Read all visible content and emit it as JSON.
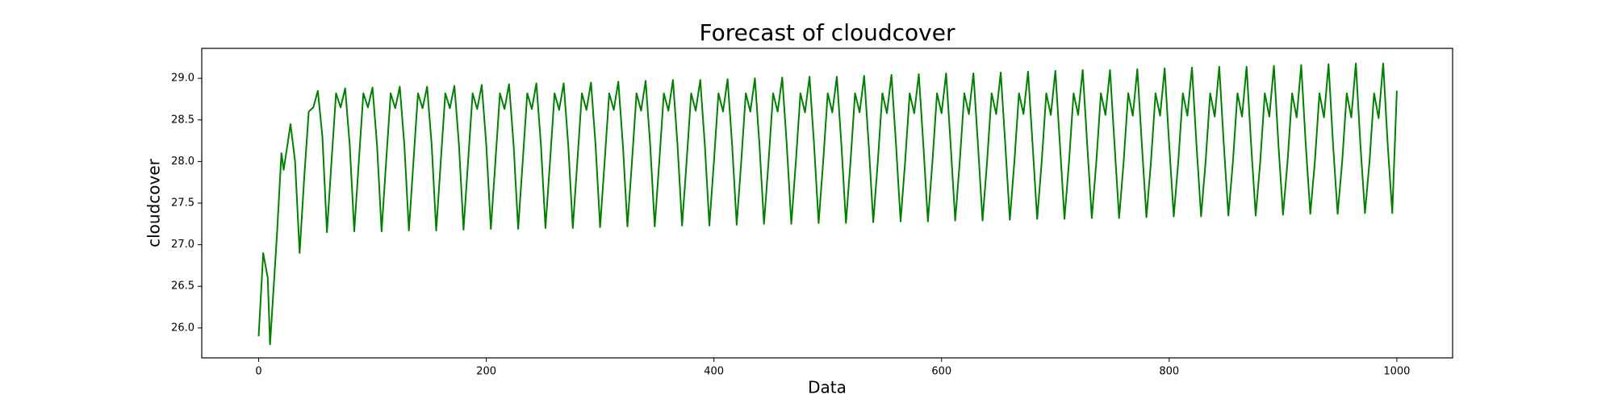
{
  "chart_data": {
    "type": "line",
    "title": "Forecast of cloudcover",
    "x_label": "Data",
    "y_label": "cloudcover",
    "xlim": [
      -50,
      1049
    ],
    "ylim": [
      25.64,
      29.36
    ],
    "xticks": [
      0,
      200,
      400,
      600,
      800,
      1000
    ],
    "yticks": [
      {
        "value": 26,
        "label": "26.0"
      },
      26.5,
      {
        "value": 27,
        "label": "27.0"
      },
      27.5,
      {
        "value": 28,
        "label": "28.0"
      },
      28.5,
      {
        "value": 29,
        "label": "29.0"
      }
    ],
    "grid": false,
    "x": [
      0,
      4,
      8,
      10,
      16,
      20,
      22,
      28,
      32,
      36,
      40,
      44,
      48,
      52,
      56,
      60,
      64,
      68,
      72,
      76,
      80,
      84,
      88,
      92,
      96,
      100,
      104,
      108,
      112,
      116,
      120,
      124,
      128,
      132,
      136,
      140,
      144,
      148,
      152,
      156,
      160,
      164,
      168,
      172,
      176,
      180,
      184,
      188,
      192,
      196,
      200,
      204,
      208,
      212,
      216,
      220,
      224,
      228,
      232,
      236,
      240,
      244,
      248,
      252,
      256,
      260,
      264,
      268,
      272,
      276,
      280,
      284,
      288,
      292,
      296,
      300,
      304,
      308,
      312,
      316,
      320,
      324,
      328,
      332,
      336,
      340,
      344,
      348,
      352,
      356,
      360,
      364,
      368,
      372,
      376,
      380,
      384,
      388,
      392,
      396,
      400,
      404,
      408,
      412,
      416,
      420,
      424,
      428,
      432,
      436,
      440,
      444,
      448,
      452,
      456,
      460,
      464,
      468,
      472,
      476,
      480,
      484,
      488,
      492,
      496,
      500,
      504,
      508,
      512,
      516,
      520,
      524,
      528,
      532,
      536,
      540,
      544,
      548,
      552,
      556,
      560,
      564,
      568,
      572,
      576,
      580,
      584,
      588,
      592,
      596,
      600,
      604,
      608,
      612,
      616,
      620,
      624,
      628,
      632,
      636,
      640,
      644,
      648,
      652,
      656,
      660,
      664,
      668,
      672,
      676,
      680,
      684,
      688,
      692,
      696,
      700,
      704,
      708,
      712,
      716,
      720,
      724,
      728,
      732,
      736,
      740,
      744,
      748,
      752,
      756,
      760,
      764,
      768,
      772,
      776,
      780,
      784,
      788,
      792,
      796,
      800,
      804,
      808,
      812,
      816,
      820,
      824,
      828,
      832,
      836,
      840,
      844,
      848,
      852,
      856,
      860,
      864,
      868,
      872,
      876,
      880,
      884,
      888,
      892,
      896,
      900,
      904,
      908,
      912,
      916,
      920,
      924,
      928,
      932,
      936,
      940,
      944,
      948,
      952,
      956,
      960,
      964,
      968,
      972,
      976,
      980,
      984,
      988,
      992,
      996,
      1000
    ],
    "series": [
      {
        "name": "cloudcover",
        "color": "#008000",
        "values": [
          25.9,
          26.9,
          26.6,
          25.8,
          27.1,
          28.1,
          27.9,
          28.45,
          28.0,
          26.9,
          27.8,
          28.6,
          28.65,
          28.85,
          28.3,
          27.15,
          28.0,
          28.82,
          28.65,
          28.88,
          28.2,
          27.16,
          28.0,
          28.82,
          28.65,
          28.89,
          28.2,
          27.16,
          28.0,
          28.82,
          28.64,
          28.9,
          28.2,
          27.17,
          28.0,
          28.82,
          28.64,
          28.9,
          28.2,
          27.17,
          28.0,
          28.82,
          28.64,
          28.91,
          28.2,
          27.18,
          28.0,
          28.82,
          28.63,
          28.92,
          28.2,
          27.19,
          28.0,
          28.82,
          28.63,
          28.93,
          28.2,
          27.19,
          28.0,
          28.82,
          28.63,
          28.94,
          28.2,
          27.2,
          28.0,
          28.82,
          28.62,
          28.94,
          28.2,
          27.2,
          28.0,
          28.82,
          28.62,
          28.95,
          28.2,
          27.21,
          28.0,
          28.82,
          28.62,
          28.96,
          28.2,
          27.22,
          28.0,
          28.82,
          28.61,
          28.97,
          28.2,
          27.22,
          28.0,
          28.82,
          28.61,
          28.98,
          28.2,
          27.23,
          28.0,
          28.82,
          28.61,
          28.98,
          28.2,
          27.23,
          28.0,
          28.82,
          28.6,
          28.99,
          28.2,
          27.24,
          28.0,
          28.82,
          28.6,
          29.0,
          28.2,
          27.25,
          28.0,
          28.82,
          28.6,
          29.01,
          28.2,
          27.25,
          28.0,
          28.82,
          28.59,
          29.02,
          28.2,
          27.26,
          28.0,
          28.82,
          28.59,
          29.02,
          28.2,
          27.26,
          28.0,
          28.82,
          28.59,
          29.03,
          28.2,
          27.27,
          28.0,
          28.82,
          28.58,
          29.04,
          28.2,
          27.28,
          28.0,
          28.82,
          28.58,
          29.05,
          28.2,
          27.28,
          28.0,
          28.82,
          28.58,
          29.06,
          28.2,
          27.29,
          28.0,
          28.82,
          28.57,
          29.06,
          28.2,
          27.29,
          28.0,
          28.82,
          28.57,
          29.07,
          28.2,
          27.3,
          28.0,
          28.82,
          28.57,
          29.08,
          28.2,
          27.31,
          28.0,
          28.82,
          28.56,
          29.09,
          28.2,
          27.31,
          28.0,
          28.82,
          28.56,
          29.1,
          28.2,
          27.32,
          28.0,
          28.82,
          28.56,
          29.1,
          28.2,
          27.32,
          28.0,
          28.82,
          28.55,
          29.11,
          28.2,
          27.33,
          28.0,
          28.82,
          28.55,
          29.12,
          28.2,
          27.34,
          28.0,
          28.82,
          28.55,
          29.13,
          28.2,
          27.34,
          28.0,
          28.82,
          28.54,
          29.14,
          28.2,
          27.35,
          28.0,
          28.82,
          28.54,
          29.14,
          28.2,
          27.35,
          28.0,
          28.82,
          28.54,
          29.15,
          28.2,
          27.36,
          28.0,
          28.82,
          28.53,
          29.16,
          28.2,
          27.37,
          28.0,
          28.82,
          28.53,
          29.17,
          28.2,
          27.37,
          28.0,
          28.82,
          28.53,
          29.18,
          28.2,
          27.38,
          28.0,
          28.82,
          28.52,
          29.18,
          28.2,
          27.38,
          28.85
        ]
      }
    ]
  }
}
